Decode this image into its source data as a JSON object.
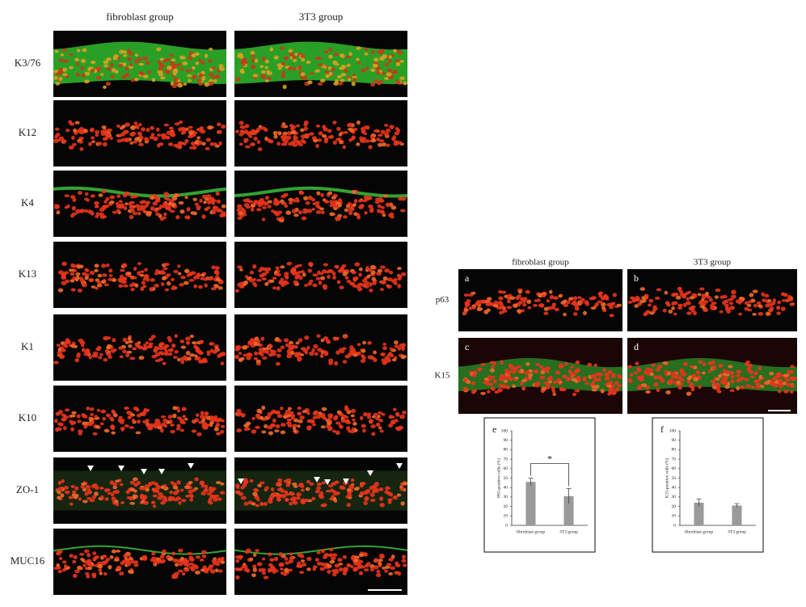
{
  "figure": {
    "left": {
      "columns": [
        "fibroblast group",
        "3T3 group"
      ],
      "rows": [
        "K3/76",
        "K12",
        "K4",
        "K13",
        "K1",
        "K10",
        "ZO-1",
        "MUC16"
      ]
    },
    "right": {
      "columns": [
        "fibroblast group",
        "3T3 group"
      ],
      "rows": [
        "p63",
        "K15"
      ],
      "panel_letters": [
        "a",
        "b",
        "c",
        "d"
      ]
    }
  },
  "chart_data": [
    {
      "type": "bar",
      "panel_letter": "e",
      "y_label": "P63-positive cells (%)",
      "categories": [
        "fibroblast group",
        "3T3 group"
      ],
      "values": [
        46,
        31
      ],
      "errors": [
        4,
        8
      ],
      "color": "#9a9a9a",
      "ylim": [
        0,
        100
      ],
      "yticks": [
        0,
        10,
        20,
        30,
        40,
        50,
        60,
        70,
        80,
        90,
        100
      ],
      "annotation": "*"
    },
    {
      "type": "bar",
      "panel_letter": "f",
      "y_label": "K15-positive cells (%)",
      "categories": [
        "fibroblast group",
        "3T3 group"
      ],
      "values": [
        24,
        21
      ],
      "errors": [
        4,
        2
      ],
      "color": "#9a9a9a",
      "ylim": [
        0,
        100
      ],
      "yticks": [
        0,
        10,
        20,
        30,
        40,
        50,
        60,
        70,
        80,
        90,
        100
      ]
    }
  ]
}
